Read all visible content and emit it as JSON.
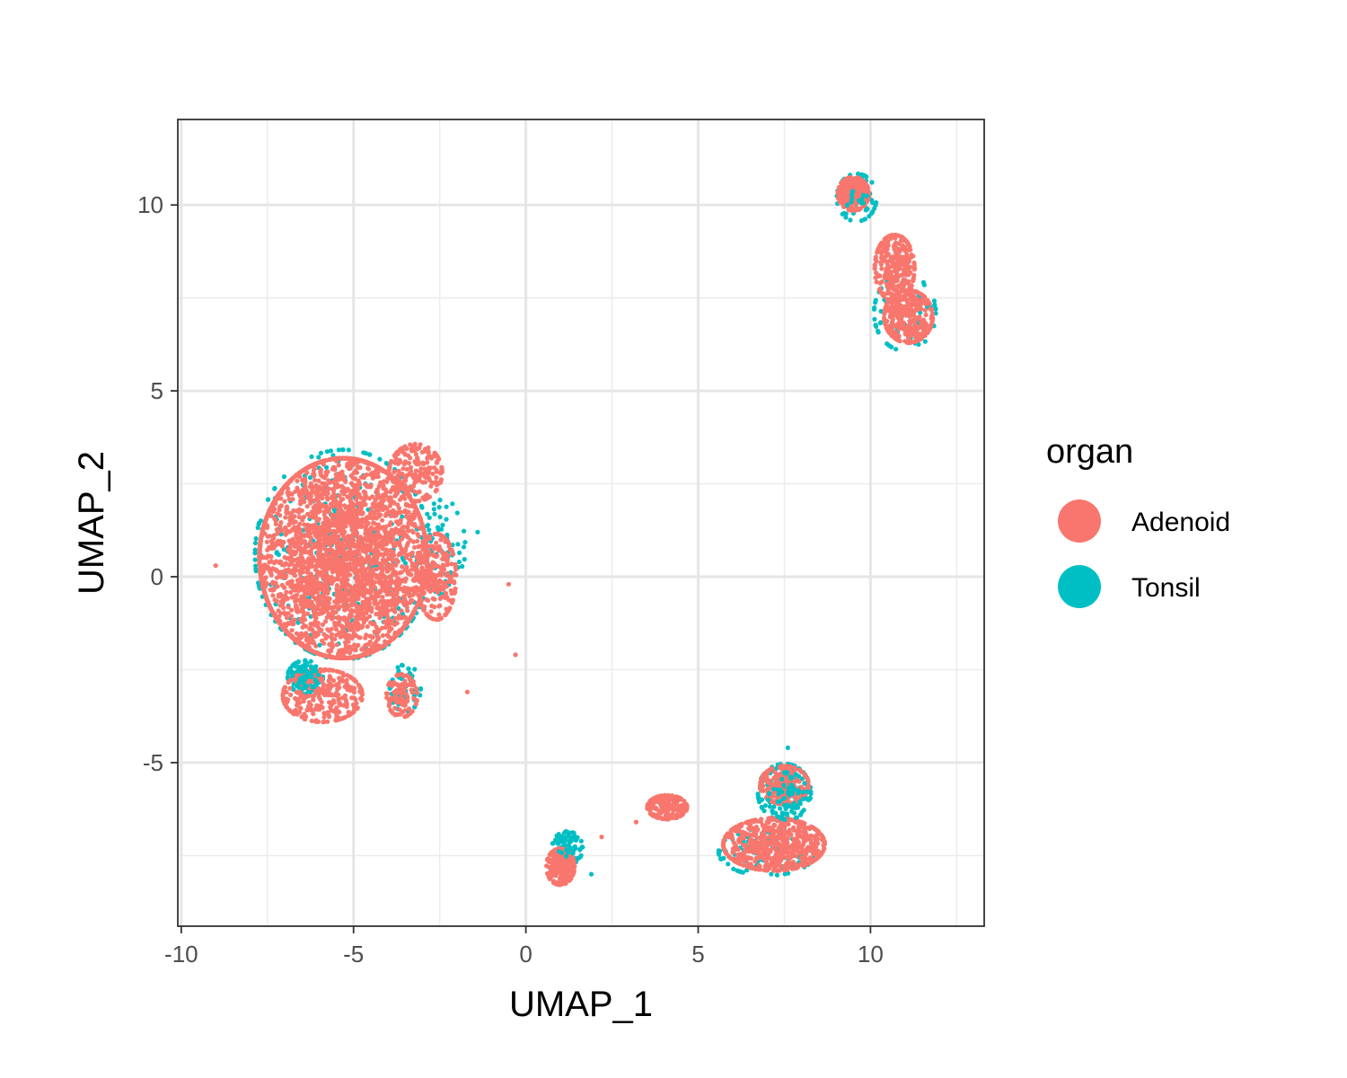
{
  "chart_data": {
    "type": "scatter",
    "title": "",
    "xlabel": "UMAP_1",
    "ylabel": "UMAP_2",
    "xlim": [
      -10.1,
      13.3
    ],
    "ylim": [
      -9.4,
      12.3
    ],
    "x_ticks": [
      -10,
      -5,
      0,
      5,
      10
    ],
    "y_ticks": [
      -5,
      0,
      5,
      10
    ],
    "x_tick_labels": [
      "-10",
      "-5",
      "0",
      "5",
      "10"
    ],
    "y_tick_labels": [
      "-5",
      "0",
      "5",
      "10"
    ],
    "grid": true,
    "legend": {
      "title": "organ",
      "position": "right",
      "entries": [
        "Adenoid",
        "Tonsil"
      ]
    },
    "series": [
      {
        "name": "Adenoid",
        "color": "#F8766D",
        "clusters": [
          {
            "center": [
              -5.3,
              0.5
            ],
            "spread": [
              1.9,
              2.1
            ],
            "count": 3400
          },
          {
            "center": [
              -3.2,
              2.8
            ],
            "spread": [
              0.6,
              0.6
            ],
            "count": 200
          },
          {
            "center": [
              -2.6,
              0.0
            ],
            "spread": [
              0.45,
              0.9
            ],
            "count": 250
          },
          {
            "center": [
              -5.9,
              -3.2
            ],
            "spread": [
              0.9,
              0.55
            ],
            "count": 320
          },
          {
            "center": [
              -3.6,
              -3.2
            ],
            "spread": [
              0.35,
              0.45
            ],
            "count": 110
          },
          {
            "center": [
              9.5,
              10.3
            ],
            "spread": [
              0.35,
              0.35
            ],
            "count": 260
          },
          {
            "center": [
              10.7,
              8.3
            ],
            "spread": [
              0.45,
              0.7
            ],
            "count": 300
          },
          {
            "center": [
              11.1,
              7.0
            ],
            "spread": [
              0.55,
              0.55
            ],
            "count": 320
          },
          {
            "center": [
              1.0,
              -7.8
            ],
            "spread": [
              0.32,
              0.38
            ],
            "count": 230
          },
          {
            "center": [
              4.1,
              -6.2
            ],
            "spread": [
              0.45,
              0.25
            ],
            "count": 170
          },
          {
            "center": [
              7.2,
              -7.2
            ],
            "spread": [
              1.15,
              0.55
            ],
            "count": 650
          },
          {
            "center": [
              7.5,
              -5.6
            ],
            "spread": [
              0.55,
              0.4
            ],
            "count": 220
          }
        ],
        "outliers": [
          [
            -9.0,
            0.3
          ],
          [
            -0.5,
            -0.2
          ],
          [
            -0.3,
            -2.1
          ],
          [
            -1.7,
            -3.1
          ],
          [
            2.2,
            -7.0
          ],
          [
            3.2,
            -6.6
          ]
        ]
      },
      {
        "name": "Tonsil",
        "color": "#00BFC4",
        "clusters": [
          {
            "center": [
              -5.3,
              0.6
            ],
            "spread": [
              2.0,
              2.2
            ],
            "count": 380
          },
          {
            "center": [
              -6.4,
              -2.7
            ],
            "spread": [
              0.4,
              0.35
            ],
            "count": 110
          },
          {
            "center": [
              -3.5,
              -3.0
            ],
            "spread": [
              0.35,
              0.5
            ],
            "count": 50
          },
          {
            "center": [
              -2.4,
              0.8
            ],
            "spread": [
              0.5,
              1.0
            ],
            "count": 60
          },
          {
            "center": [
              9.6,
              10.2
            ],
            "spread": [
              0.45,
              0.5
            ],
            "count": 70
          },
          {
            "center": [
              11.0,
              7.1
            ],
            "spread": [
              0.7,
              0.8
            ],
            "count": 80
          },
          {
            "center": [
              1.2,
              -7.3
            ],
            "spread": [
              0.35,
              0.35
            ],
            "count": 80
          },
          {
            "center": [
              7.5,
              -5.8
            ],
            "spread": [
              0.6,
              0.6
            ],
            "count": 160
          },
          {
            "center": [
              7.0,
              -7.4
            ],
            "spread": [
              1.1,
              0.5
            ],
            "count": 120
          }
        ],
        "outliers": [
          [
            -1.4,
            1.2
          ],
          [
            -1.8,
            0.8
          ],
          [
            1.9,
            -8.0
          ],
          [
            7.6,
            -4.6
          ]
        ]
      }
    ]
  }
}
